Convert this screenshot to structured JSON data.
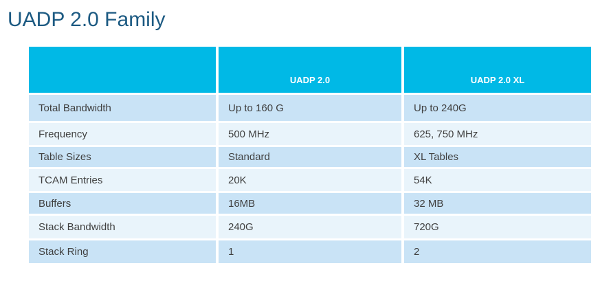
{
  "slide": {
    "title": "UADP 2.0 Family"
  },
  "colors": {
    "title_color": "#1C5A82",
    "header_bg": "#00B9E6",
    "header_text": "#FFFFFF",
    "row_alt_dark": "#C9E3F6",
    "row_alt_light": "#E9F4FB",
    "body_text": "#404040"
  },
  "table": {
    "column_headers": [
      "",
      "UADP 2.0",
      "UADP 2.0 XL"
    ],
    "rows": [
      {
        "label": "Total Bandwidth",
        "uadp_2_0": "Up to 160 G",
        "uadp_2_0_xl": "Up to 240G"
      },
      {
        "label": "Frequency",
        "uadp_2_0": "500 MHz",
        "uadp_2_0_xl": "625, 750 MHz"
      },
      {
        "label": "Table Sizes",
        "uadp_2_0": "Standard",
        "uadp_2_0_xl": "XL Tables"
      },
      {
        "label": "TCAM Entries",
        "uadp_2_0": "20K",
        "uadp_2_0_xl": "54K"
      },
      {
        "label": "Buffers",
        "uadp_2_0": "16MB",
        "uadp_2_0_xl": "32 MB"
      },
      {
        "label": "Stack Bandwidth",
        "uadp_2_0": "240G",
        "uadp_2_0_xl": "720G"
      },
      {
        "label": "Stack Ring",
        "uadp_2_0": "1",
        "uadp_2_0_xl": "2"
      }
    ]
  }
}
